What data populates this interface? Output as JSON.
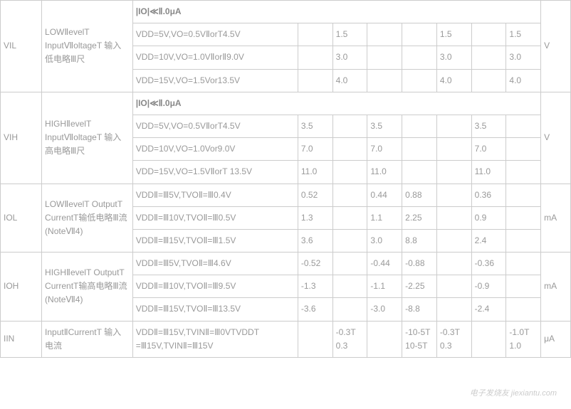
{
  "rows": {
    "vil": {
      "symbol": "VIL",
      "param": "LOWⅡevelT InputⅦoltageT 输入低电略Ⅲ尺",
      "header": "|IO|≪Ⅱ.0μA",
      "r1": {
        "cond": "VDD=5V,VO=0.5VⅡorT4.5V",
        "c1": "",
        "c2": "1.5",
        "c3": "",
        "c4": "",
        "c5": "1.5",
        "c6": "",
        "c7": "1.5"
      },
      "r2": {
        "cond": "VDD=10V,VO=1.0VⅡorⅡ9.0V",
        "c1": "",
        "c2": "3.0",
        "c3": "",
        "c4": "",
        "c5": "3.0",
        "c6": "",
        "c7": "3.0"
      },
      "r3": {
        "cond": "VDD=15V,VO=1.5Vor13.5V",
        "c1": "",
        "c2": "4.0",
        "c3": "",
        "c4": "",
        "c5": "4.0",
        "c6": "",
        "c7": "4.0"
      },
      "unit": "V"
    },
    "vih": {
      "symbol": "VIH",
      "param": "HIGHⅡevelT InputⅦoltageT 输入高电略Ⅲ尺",
      "header": "|IO|≪Ⅱ.0μA",
      "r1": {
        "cond": "VDD=5V,VO=0.5VⅡorT4.5V",
        "c1": "3.5",
        "c2": "",
        "c3": "3.5",
        "c4": "",
        "c5": "",
        "c6": "3.5",
        "c7": ""
      },
      "r2": {
        "cond": "VDD=10V,VO=1.0Vor9.0V",
        "c1": "7.0",
        "c2": "",
        "c3": "7.0",
        "c4": "",
        "c5": "",
        "c6": "7.0",
        "c7": ""
      },
      "r3": {
        "cond": "VDD=15V,VO=1.5VⅡorT 13.5V",
        "c1": "11.0",
        "c2": "",
        "c3": "11.0",
        "c4": "",
        "c5": "",
        "c6": "11.0",
        "c7": ""
      },
      "unit": "V"
    },
    "iol": {
      "symbol": "IOL",
      "param": "LOWⅡevelT OutputT CurrentT输低电略Ⅲ流 (NoteⅦ4)",
      "r1": {
        "cond": "VDDⅡ=Ⅲ5V,TVOⅡ=Ⅲ0.4V",
        "c1": "0.52",
        "c2": "",
        "c3": "0.44",
        "c4": "0.88",
        "c5": "",
        "c6": "0.36",
        "c7": ""
      },
      "r2": {
        "cond": "VDDⅡ=Ⅲ10V,TVOⅡ=Ⅲ0.5V",
        "c1": "1.3",
        "c2": "",
        "c3": "1.1",
        "c4": "2.25",
        "c5": "",
        "c6": "0.9",
        "c7": ""
      },
      "r3": {
        "cond": "VDDⅡ=Ⅲ15V,TVOⅡ=Ⅲ1.5V",
        "c1": "3.6",
        "c2": "",
        "c3": "3.0",
        "c4": "8.8",
        "c5": "",
        "c6": "2.4",
        "c7": ""
      },
      "unit": "mA"
    },
    "ioh": {
      "symbol": "IOH",
      "param": "HIGHⅡevelT OutputT CurrentT输高电略Ⅲ流 (NoteⅦ4)",
      "r1": {
        "cond": "VDDⅡ=Ⅲ5V,TVOⅡ=Ⅲ4.6V",
        "c1": "-0.52",
        "c2": "",
        "c3": "-0.44",
        "c4": "-0.88",
        "c5": "",
        "c6": "-0.36",
        "c7": ""
      },
      "r2": {
        "cond": "VDDⅡ=Ⅲ10V,TVOⅡ=Ⅲ9.5V",
        "c1": "-1.3",
        "c2": "",
        "c3": "-1.1",
        "c4": "-2.25",
        "c5": "",
        "c6": "-0.9",
        "c7": ""
      },
      "r3": {
        "cond": "VDDⅡ=Ⅲ15V,TVOⅡ=Ⅲ13.5V",
        "c1": "-3.6",
        "c2": "",
        "c3": "-3.0",
        "c4": "-8.8",
        "c5": "",
        "c6": "-2.4",
        "c7": ""
      },
      "unit": "mA"
    },
    "iin": {
      "symbol": "IIN",
      "param": "InputⅡCurrentT 输入电流",
      "r1": {
        "cond": "VDDⅡ=Ⅲ15V,TVINⅡ=Ⅲ0VTVDDT =Ⅲ15V,TVINⅡ=Ⅲ15V",
        "c1": "",
        "c2": "-0.3T 0.3",
        "c3": "",
        "c4": "-10-5T 10-5T",
        "c5": "-0.3T 0.3",
        "c6": "",
        "c7": "-1.0T 1.0"
      },
      "unit": "μA"
    }
  },
  "watermark": "电子发烧友 jiexiantu.com"
}
